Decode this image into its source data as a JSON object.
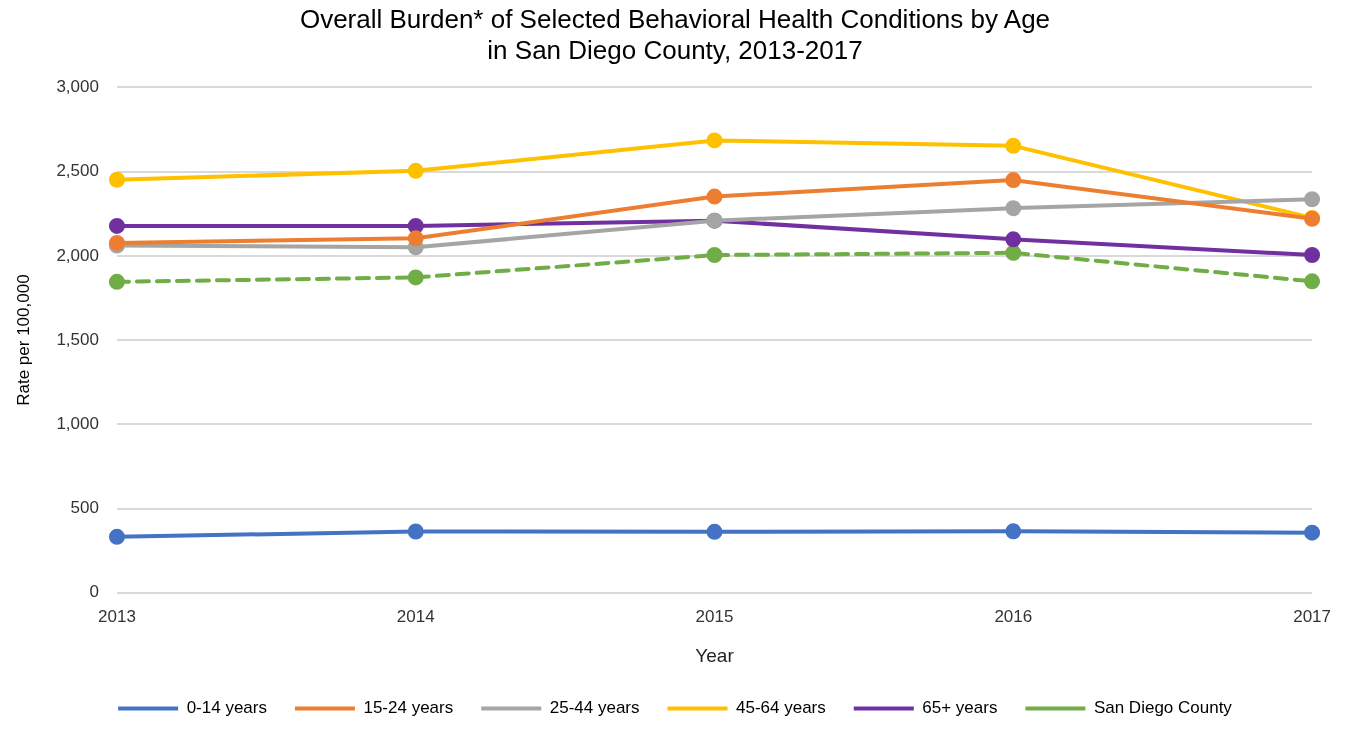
{
  "chart_data": {
    "type": "line",
    "title": "Overall Burden* of Selected Behavioral Health Conditions by Age\nin San Diego County, 2013-2017",
    "xlabel": "Year",
    "ylabel": "Rate per 100,000",
    "categories": [
      "2013",
      "2014",
      "2015",
      "2016",
      "2017"
    ],
    "series": [
      {
        "name": "0-14 years",
        "color": "#4472c4",
        "values": [
          332,
          364,
          362,
          365,
          357
        ]
      },
      {
        "name": "15-24 years",
        "color": "#ed7d31",
        "values": [
          2077,
          2104,
          2352,
          2450,
          2220
        ]
      },
      {
        "name": "25-44 years",
        "color": "#a5a5a5",
        "values": [
          2061,
          2051,
          2209,
          2283,
          2336
        ]
      },
      {
        "name": "45-64 years",
        "color": "#ffc000",
        "values": [
          2452,
          2505,
          2685,
          2653,
          2225
        ]
      },
      {
        "name": "65+ years",
        "color": "#7030a0",
        "values": [
          2178,
          2178,
          2209,
          2098,
          2005
        ]
      },
      {
        "name": "San Diego County",
        "color": "#70ad47",
        "values": [
          1846,
          1872,
          2005,
          2018,
          1849
        ],
        "line_style": "dashed"
      }
    ],
    "ylim": [
      0,
      3000
    ],
    "yticks": [
      {
        "value": 0,
        "label": "0"
      },
      {
        "value": 500,
        "label": "500"
      },
      {
        "value": 1000,
        "label": "1,000"
      },
      {
        "value": 1500,
        "label": "1,500"
      },
      {
        "value": 2000,
        "label": "2,000"
      },
      {
        "value": 2500,
        "label": "2,500"
      },
      {
        "value": 3000,
        "label": "3,000"
      }
    ],
    "grid": "y",
    "legend": "bottom",
    "marker": "circle",
    "line_style": "solid"
  }
}
